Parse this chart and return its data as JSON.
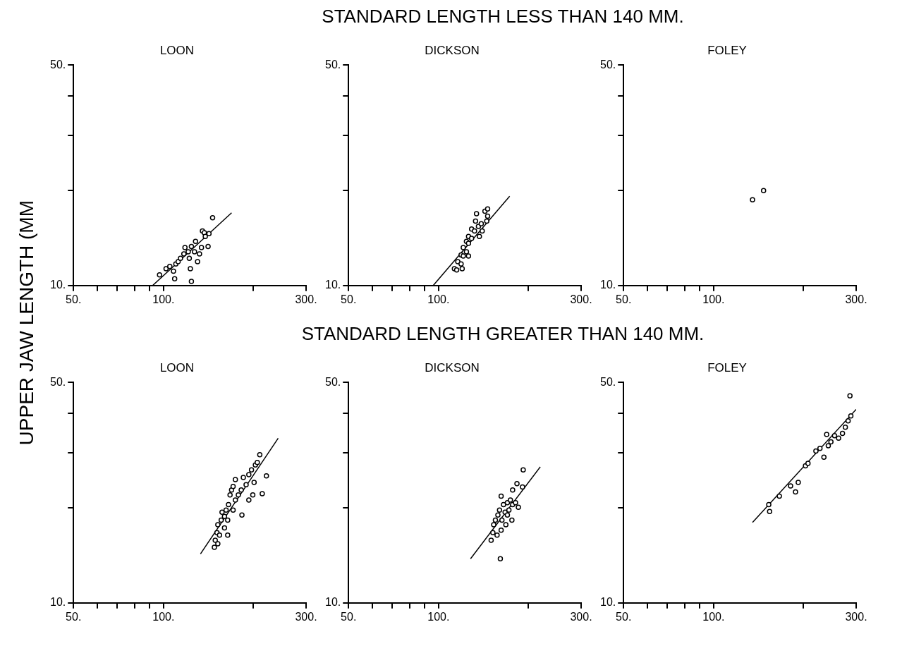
{
  "chart_data": [
    {
      "type": "scatter",
      "title": "LOON",
      "ylabel": "UPPER JAW LENGTH (MM",
      "annotations": [
        "STANDARD LENGTH LESS THAN 140 MM."
      ],
      "log": "xy",
      "xlim": [
        50,
        300
      ],
      "ylim": [
        10,
        50
      ],
      "xticks": [
        {
          "value": 50,
          "label": "50."
        },
        {
          "value": 60,
          "label": null
        },
        {
          "value": 70,
          "label": null
        },
        {
          "value": 80,
          "label": null
        },
        {
          "value": 90,
          "label": null
        },
        {
          "value": 100,
          "label": "100."
        },
        {
          "value": 200,
          "label": null
        },
        {
          "value": 300,
          "label": "300."
        }
      ],
      "yticks": [
        {
          "value": 10,
          "label": "10."
        },
        {
          "value": 20,
          "label": null
        },
        {
          "value": 30,
          "label": null
        },
        {
          "value": 40,
          "label": null
        },
        {
          "value": 50,
          "label": "50."
        }
      ],
      "series": [
        {
          "type": "scatter",
          "marker": "circle",
          "color": "#000000",
          "x": [
            97,
            102,
            105,
            108,
            110,
            109,
            112,
            114,
            117,
            118,
            121,
            122,
            123,
            124,
            127,
            128,
            130,
            132,
            134,
            135,
            137,
            138,
            141,
            142,
            124,
            146
          ],
          "values": [
            10.8,
            11.3,
            11.5,
            11.1,
            11.7,
            10.5,
            11.9,
            12.2,
            12.6,
            13.2,
            12.8,
            12.2,
            11.3,
            13.3,
            12.8,
            13.8,
            11.9,
            12.6,
            13.2,
            14.9,
            14.7,
            14.3,
            13.3,
            14.6,
            10.3,
            16.4
          ]
        },
        {
          "type": "line",
          "marker": "none",
          "color": "#000000",
          "x": [
            92,
            169
          ],
          "values": [
            10,
            17
          ]
        }
      ]
    },
    {
      "type": "scatter",
      "title": "DICKSON",
      "log": "xy",
      "xlim": [
        50,
        300
      ],
      "ylim": [
        10,
        50
      ],
      "xticks": [
        {
          "value": 50,
          "label": "50."
        },
        {
          "value": 60,
          "label": null
        },
        {
          "value": 70,
          "label": null
        },
        {
          "value": 80,
          "label": null
        },
        {
          "value": 90,
          "label": null
        },
        {
          "value": 100,
          "label": "100."
        },
        {
          "value": 200,
          "label": null
        },
        {
          "value": 300,
          "label": "300."
        }
      ],
      "yticks": [
        {
          "value": 10,
          "label": "10."
        },
        {
          "value": 20,
          "label": null
        },
        {
          "value": 30,
          "label": null
        },
        {
          "value": 40,
          "label": null
        },
        {
          "value": 50,
          "label": "50."
        }
      ],
      "series": [
        {
          "type": "scatter",
          "marker": "circle",
          "color": "#000000",
          "x": [
            113,
            115,
            116,
            119,
            119,
            121,
            121,
            124,
            124,
            126,
            126,
            129,
            129,
            132,
            133,
            134,
            136,
            137,
            139,
            140,
            143,
            145,
            146,
            120,
            126,
            146
          ],
          "values": [
            11.3,
            11.2,
            11.9,
            11.7,
            12.5,
            12.4,
            13.2,
            12.8,
            13.8,
            13.6,
            14.3,
            14.1,
            15.1,
            14.9,
            16.0,
            16.9,
            15.4,
            14.3,
            15.7,
            14.9,
            17.2,
            16.0,
            16.6,
            11.3,
            12.4,
            17.5
          ]
        },
        {
          "type": "line",
          "marker": "none",
          "color": "#000000",
          "x": [
            96,
            173
          ],
          "values": [
            10,
            19.2
          ]
        }
      ]
    },
    {
      "type": "scatter",
      "title": "FOLEY",
      "log": "xy",
      "xlim": [
        50,
        300
      ],
      "ylim": [
        10,
        50
      ],
      "xticks": [
        {
          "value": 50,
          "label": "50."
        },
        {
          "value": 60,
          "label": null
        },
        {
          "value": 70,
          "label": null
        },
        {
          "value": 80,
          "label": null
        },
        {
          "value": 90,
          "label": null
        },
        {
          "value": 100,
          "label": "100."
        },
        {
          "value": 200,
          "label": null
        },
        {
          "value": 300,
          "label": "300."
        }
      ],
      "yticks": [
        {
          "value": 10,
          "label": "10."
        },
        {
          "value": 20,
          "label": null
        },
        {
          "value": 30,
          "label": null
        },
        {
          "value": 40,
          "label": null
        },
        {
          "value": 50,
          "label": "50."
        }
      ],
      "series": [
        {
          "type": "scatter",
          "marker": "circle",
          "color": "#000000",
          "x": [
            135,
            147
          ],
          "values": [
            18.7,
            20.0
          ]
        }
      ]
    },
    {
      "type": "scatter",
      "title": "LOON",
      "annotations": [
        "STANDARD LENGTH GREATER THAN 140 MM."
      ],
      "log": "xy",
      "xlim": [
        50,
        300
      ],
      "ylim": [
        10,
        50
      ],
      "xticks": [
        {
          "value": 50,
          "label": "50."
        },
        {
          "value": 60,
          "label": null
        },
        {
          "value": 70,
          "label": null
        },
        {
          "value": 80,
          "label": null
        },
        {
          "value": 90,
          "label": null
        },
        {
          "value": 100,
          "label": "100."
        },
        {
          "value": 200,
          "label": null
        },
        {
          "value": 300,
          "label": "300."
        }
      ],
      "yticks": [
        {
          "value": 10,
          "label": "10."
        },
        {
          "value": 20,
          "label": null
        },
        {
          "value": 30,
          "label": null
        },
        {
          "value": 40,
          "label": null
        },
        {
          "value": 50,
          "label": "50."
        }
      ],
      "series": [
        {
          "type": "scatter",
          "marker": "circle",
          "color": "#000000",
          "x": [
            148,
            149,
            151,
            152,
            154,
            156,
            157,
            160,
            162,
            164,
            165,
            167,
            169,
            171,
            174,
            174,
            178,
            182,
            183,
            185,
            189,
            193,
            197,
            199,
            201,
            203,
            206,
            210,
            214,
            221,
            171,
            164,
            152,
            160,
            193
          ],
          "values": [
            15.0,
            15.8,
            16.7,
            17.7,
            16.4,
            18.3,
            19.4,
            17.3,
            19.7,
            18.3,
            20.5,
            22.0,
            22.8,
            19.7,
            21.2,
            24.6,
            22.0,
            22.8,
            19.0,
            25.0,
            23.7,
            25.5,
            26.4,
            22.0,
            24.1,
            27.4,
            27.9,
            29.5,
            22.2,
            25.3,
            23.4,
            16.4,
            15.4,
            18.8,
            21.2
          ]
        },
        {
          "type": "line",
          "marker": "none",
          "color": "#000000",
          "x": [
            133,
            242
          ],
          "values": [
            14.3,
            33.3
          ]
        }
      ]
    },
    {
      "type": "scatter",
      "title": "DICKSON",
      "log": "xy",
      "xlim": [
        50,
        300
      ],
      "ylim": [
        10,
        50
      ],
      "xticks": [
        {
          "value": 50,
          "label": "50."
        },
        {
          "value": 60,
          "label": null
        },
        {
          "value": 70,
          "label": null
        },
        {
          "value": 80,
          "label": null
        },
        {
          "value": 90,
          "label": null
        },
        {
          "value": 100,
          "label": "100."
        },
        {
          "value": 200,
          "label": null
        },
        {
          "value": 300,
          "label": "300."
        }
      ],
      "yticks": [
        {
          "value": 10,
          "label": "10."
        },
        {
          "value": 20,
          "label": null
        },
        {
          "value": 30,
          "label": null
        },
        {
          "value": 40,
          "label": null
        },
        {
          "value": 50,
          "label": "50."
        }
      ],
      "series": [
        {
          "type": "scatter",
          "marker": "circle",
          "color": "#000000",
          "x": [
            150,
            152,
            153,
            155,
            157,
            158,
            160,
            162,
            163,
            165,
            167,
            168,
            170,
            172,
            174,
            176,
            177,
            181,
            185,
            177,
            183,
            191,
            192,
            162,
            161,
            170
          ],
          "values": [
            15.8,
            16.7,
            17.7,
            18.3,
            16.4,
            19.0,
            19.7,
            17.0,
            18.3,
            20.5,
            19.4,
            17.7,
            20.8,
            19.7,
            21.2,
            18.3,
            20.5,
            20.8,
            20.1,
            22.8,
            23.9,
            23.3,
            26.4,
            21.8,
            13.8,
            19.0
          ]
        },
        {
          "type": "line",
          "marker": "none",
          "color": "#000000",
          "x": [
            128,
            219
          ],
          "values": [
            13.8,
            27.0
          ]
        }
      ]
    },
    {
      "type": "scatter",
      "title": "FOLEY",
      "log": "xy",
      "xlim": [
        50,
        300
      ],
      "ylim": [
        10,
        50
      ],
      "xticks": [
        {
          "value": 50,
          "label": "50."
        },
        {
          "value": 60,
          "label": null
        },
        {
          "value": 70,
          "label": null
        },
        {
          "value": 80,
          "label": null
        },
        {
          "value": 90,
          "label": null
        },
        {
          "value": 100,
          "label": "100."
        },
        {
          "value": 200,
          "label": null
        },
        {
          "value": 300,
          "label": "300."
        }
      ],
      "yticks": [
        {
          "value": 10,
          "label": "10."
        },
        {
          "value": 20,
          "label": null
        },
        {
          "value": 30,
          "label": null
        },
        {
          "value": 40,
          "label": null
        },
        {
          "value": 50,
          "label": "50."
        }
      ],
      "series": [
        {
          "type": "scatter",
          "marker": "circle",
          "color": "#000000",
          "x": [
            154,
            153,
            166,
            181,
            188,
            192,
            203,
            207,
            220,
            227,
            234,
            239,
            242,
            247,
            254,
            262,
            270,
            276,
            282,
            288,
            286
          ],
          "values": [
            19.5,
            20.5,
            21.8,
            23.5,
            22.5,
            24.1,
            27.2,
            27.7,
            30.3,
            30.9,
            29.0,
            34.2,
            31.5,
            32.4,
            33.9,
            33.3,
            34.5,
            36.1,
            37.8,
            39.2,
            45.4
          ]
        },
        {
          "type": "line",
          "marker": "none",
          "color": "#000000",
          "x": [
            135,
            300
          ],
          "values": [
            18.0,
            41.1
          ]
        }
      ]
    }
  ]
}
